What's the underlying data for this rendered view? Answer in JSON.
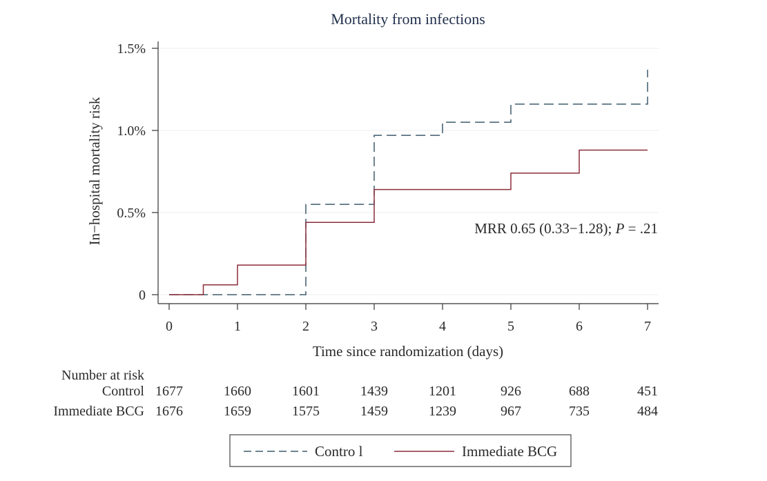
{
  "chart_data": {
    "type": "line",
    "subtype": "step",
    "title": "Mortality from infections",
    "xlabel": "Time since randomization (days)",
    "ylabel": "In−hospital mortality risk",
    "xlim": [
      0,
      7
    ],
    "ylim": [
      0,
      1.5
    ],
    "x_ticks": [
      "0",
      "1",
      "2",
      "3",
      "4",
      "5",
      "6",
      "7"
    ],
    "x_tick_values": [
      0,
      1,
      2,
      3,
      4,
      5,
      6,
      7
    ],
    "y_ticks": [
      "0",
      "0.5%",
      "1.0%",
      "1.5%"
    ],
    "y_tick_values": [
      0,
      0.5,
      1.0,
      1.5
    ],
    "series": [
      {
        "name": "Control",
        "style": "dashed",
        "color": "#3d5a6c",
        "steps": [
          [
            0,
            0
          ],
          [
            1,
            0.0
          ],
          [
            2,
            0.55
          ],
          [
            3,
            0.97
          ],
          [
            4,
            1.05
          ],
          [
            5,
            1.16
          ],
          [
            7,
            1.16
          ]
        ],
        "final_step": [
          7,
          1.37
        ]
      },
      {
        "name": "Immediate BCG",
        "style": "solid",
        "color": "#8b2c3a",
        "steps": [
          [
            0,
            0
          ],
          [
            0.5,
            0.06
          ],
          [
            1,
            0.18
          ],
          [
            2,
            0.44
          ],
          [
            3,
            0.64
          ],
          [
            5,
            0.74
          ],
          [
            6,
            0.88
          ],
          [
            7,
            0.88
          ]
        ]
      }
    ],
    "annotation": {
      "prefix": "MRR 0.65 (0.33−1.28); ",
      "p_label": "P",
      "suffix": " = .21",
      "full_text": "MRR 0.65 (0.33−1.28); P = .21"
    },
    "risk_table": {
      "header": "Number at risk",
      "rows": [
        {
          "label": "Control",
          "values": [
            "1677",
            "1660",
            "1601",
            "1439",
            "1201",
            "926",
            "688",
            "451"
          ]
        },
        {
          "label": "Immediate BCG",
          "values": [
            "1676",
            "1659",
            "1575",
            "1459",
            "1239",
            "967",
            "735",
            "484"
          ]
        }
      ]
    },
    "legend": {
      "position": "bottom-center",
      "entries": [
        {
          "label": "Contro l",
          "style": "dashed",
          "color": "#3d5a6c"
        },
        {
          "label": "Immediate BCG",
          "style": "solid",
          "color": "#8b2c3a"
        }
      ]
    }
  }
}
